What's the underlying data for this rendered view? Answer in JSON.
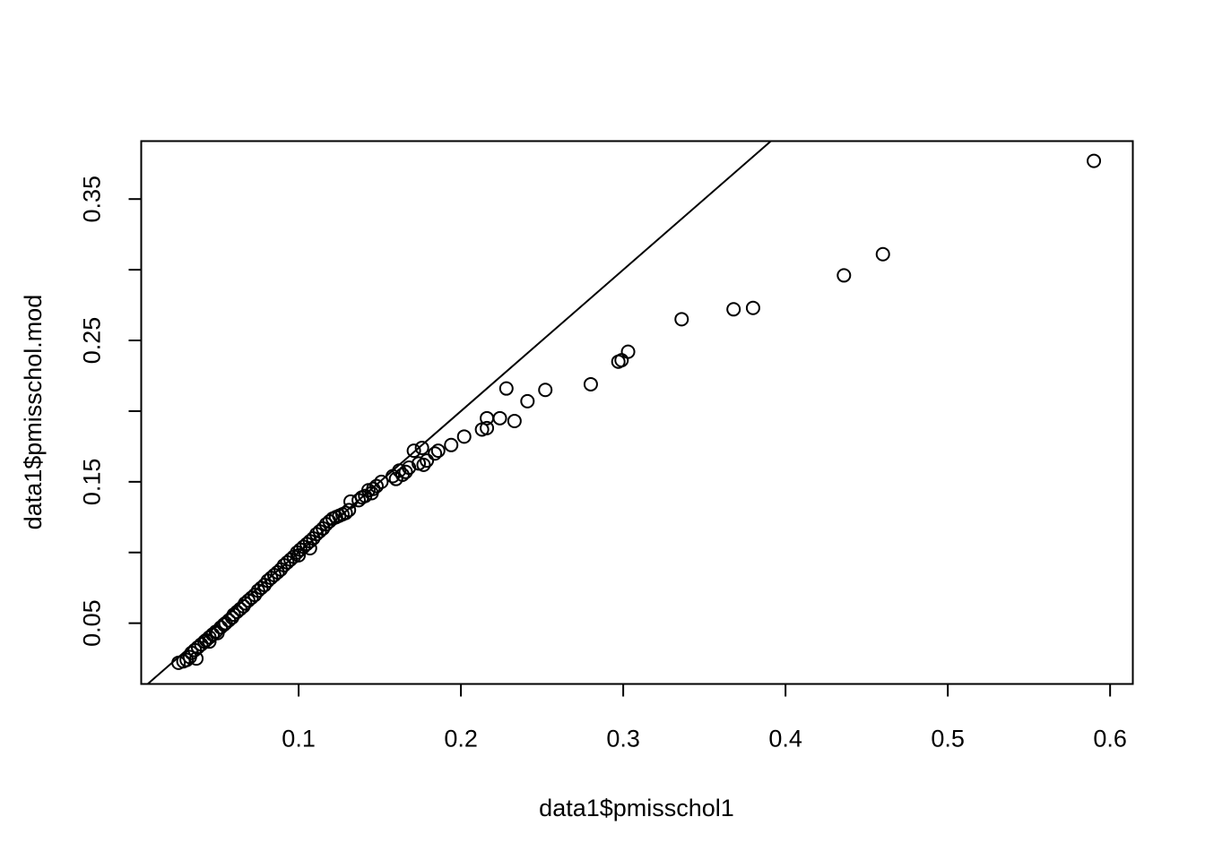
{
  "chart_data": {
    "type": "scatter",
    "title": "",
    "xlabel": "data1$pmisschol1",
    "ylabel": "data1$pmisschol.mod",
    "xlim": [
      0.003,
      0.614
    ],
    "ylim": [
      0.007,
      0.391
    ],
    "x_ticks": [
      0.1,
      0.2,
      0.3,
      0.4,
      0.5,
      0.6
    ],
    "x_tick_labels": [
      "0.1",
      "0.2",
      "0.3",
      "0.4",
      "0.5",
      "0.6"
    ],
    "y_ticks": [
      0.05,
      0.1,
      0.15,
      0.2,
      0.25,
      0.3,
      0.35
    ],
    "y_tick_labels": [
      "0.05",
      "",
      "0.15",
      "",
      "0.25",
      "",
      "0.35"
    ],
    "grid": false,
    "legend": "none",
    "marker": "open-circle",
    "reference_line": {
      "intercept": 0,
      "slope": 1
    },
    "series": [
      {
        "points": [
          [
            0.026,
            0.022
          ],
          [
            0.029,
            0.023
          ],
          [
            0.031,
            0.024
          ],
          [
            0.033,
            0.026
          ],
          [
            0.037,
            0.025
          ],
          [
            0.034,
            0.029
          ],
          [
            0.036,
            0.031
          ],
          [
            0.038,
            0.033
          ],
          [
            0.04,
            0.035
          ],
          [
            0.042,
            0.037
          ],
          [
            0.043,
            0.038
          ],
          [
            0.045,
            0.037
          ],
          [
            0.045,
            0.04
          ],
          [
            0.047,
            0.042
          ],
          [
            0.049,
            0.044
          ],
          [
            0.05,
            0.043
          ],
          [
            0.052,
            0.047
          ],
          [
            0.054,
            0.049
          ],
          [
            0.055,
            0.05
          ],
          [
            0.057,
            0.052
          ],
          [
            0.059,
            0.054
          ],
          [
            0.06,
            0.056
          ],
          [
            0.062,
            0.058
          ],
          [
            0.064,
            0.06
          ],
          [
            0.066,
            0.062
          ],
          [
            0.067,
            0.064
          ],
          [
            0.069,
            0.066
          ],
          [
            0.071,
            0.068
          ],
          [
            0.073,
            0.07
          ],
          [
            0.075,
            0.073
          ],
          [
            0.077,
            0.075
          ],
          [
            0.079,
            0.077
          ],
          [
            0.081,
            0.08
          ],
          [
            0.083,
            0.082
          ],
          [
            0.085,
            0.084
          ],
          [
            0.087,
            0.086
          ],
          [
            0.089,
            0.088
          ],
          [
            0.091,
            0.091
          ],
          [
            0.093,
            0.093
          ],
          [
            0.095,
            0.095
          ],
          [
            0.097,
            0.097
          ],
          [
            0.099,
            0.1
          ],
          [
            0.1,
            0.098
          ],
          [
            0.101,
            0.102
          ],
          [
            0.103,
            0.104
          ],
          [
            0.105,
            0.106
          ],
          [
            0.107,
            0.108
          ],
          [
            0.107,
            0.103
          ],
          [
            0.109,
            0.11
          ],
          [
            0.111,
            0.113
          ],
          [
            0.113,
            0.115
          ],
          [
            0.115,
            0.117
          ],
          [
            0.117,
            0.12
          ],
          [
            0.119,
            0.122
          ],
          [
            0.121,
            0.124
          ],
          [
            0.123,
            0.125
          ],
          [
            0.125,
            0.126
          ],
          [
            0.127,
            0.127
          ],
          [
            0.129,
            0.128
          ],
          [
            0.131,
            0.13
          ],
          [
            0.132,
            0.136
          ],
          [
            0.137,
            0.137
          ],
          [
            0.139,
            0.139
          ],
          [
            0.141,
            0.14
          ],
          [
            0.143,
            0.144
          ],
          [
            0.145,
            0.142
          ],
          [
            0.146,
            0.145
          ],
          [
            0.148,
            0.147
          ],
          [
            0.151,
            0.15
          ],
          [
            0.158,
            0.154
          ],
          [
            0.16,
            0.152
          ],
          [
            0.162,
            0.158
          ],
          [
            0.164,
            0.155
          ],
          [
            0.166,
            0.157
          ],
          [
            0.168,
            0.16
          ],
          [
            0.171,
            0.172
          ],
          [
            0.174,
            0.163
          ],
          [
            0.176,
            0.174
          ],
          [
            0.177,
            0.162
          ],
          [
            0.179,
            0.165
          ],
          [
            0.184,
            0.17
          ],
          [
            0.186,
            0.172
          ],
          [
            0.194,
            0.176
          ],
          [
            0.202,
            0.182
          ],
          [
            0.213,
            0.187
          ],
          [
            0.216,
            0.188
          ],
          [
            0.216,
            0.195
          ],
          [
            0.224,
            0.195
          ],
          [
            0.228,
            0.216
          ],
          [
            0.233,
            0.193
          ],
          [
            0.241,
            0.207
          ],
          [
            0.252,
            0.215
          ],
          [
            0.28,
            0.219
          ],
          [
            0.297,
            0.235
          ],
          [
            0.299,
            0.236
          ],
          [
            0.303,
            0.242
          ],
          [
            0.336,
            0.265
          ],
          [
            0.368,
            0.272
          ],
          [
            0.38,
            0.273
          ],
          [
            0.436,
            0.296
          ],
          [
            0.46,
            0.311
          ],
          [
            0.59,
            0.377
          ]
        ]
      }
    ]
  }
}
